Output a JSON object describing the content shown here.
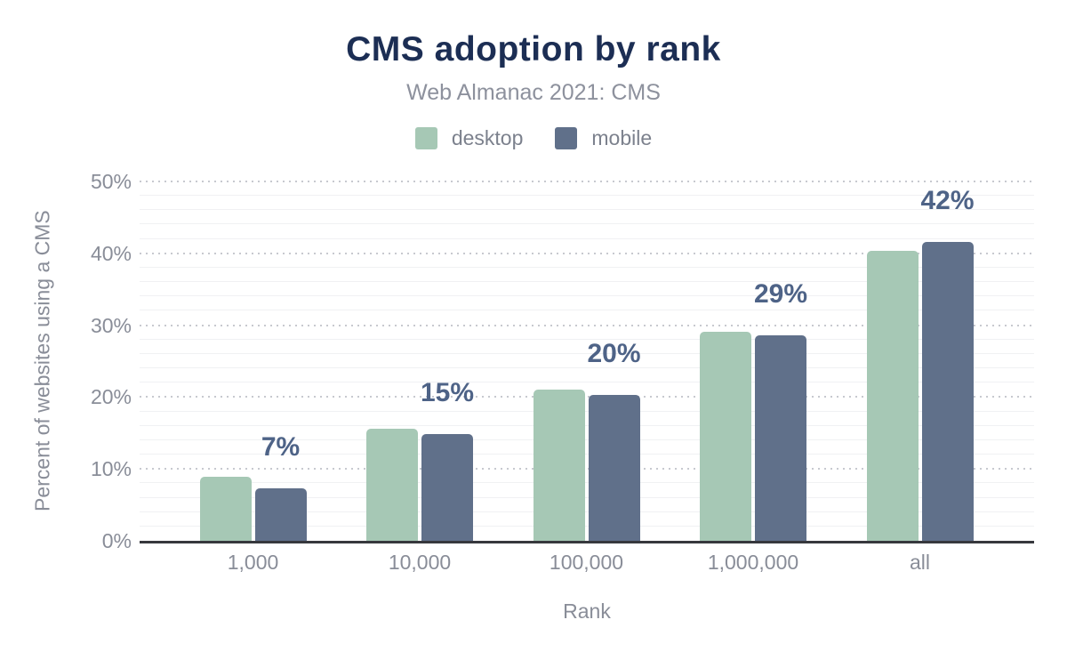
{
  "chart_data": {
    "type": "bar",
    "title": "CMS adoption by rank",
    "subtitle": "Web Almanac 2021: CMS",
    "xlabel": "Rank",
    "ylabel": "Percent of websites using a CMS",
    "categories": [
      "1,000",
      "10,000",
      "100,000",
      "1,000,000",
      "all"
    ],
    "series": [
      {
        "name": "desktop",
        "color": "#a6c8b5",
        "values": [
          8.9,
          15.6,
          21.0,
          29.1,
          40.3
        ]
      },
      {
        "name": "mobile",
        "color": "#60708a",
        "values": [
          7.3,
          14.9,
          20.3,
          28.6,
          41.6
        ]
      }
    ],
    "bar_labels": [
      "7%",
      "15%",
      "20%",
      "29%",
      "42%"
    ],
    "bar_labels_over_series": "mobile",
    "ylim": [
      0,
      50
    ],
    "yticks": [
      "0%",
      "10%",
      "20%",
      "30%",
      "40%",
      "50%"
    ],
    "grid": {
      "minor_step": 2,
      "major_step": 10,
      "major_style": "dotted",
      "minor_style": "solid"
    },
    "legend_position": "top",
    "colors": {
      "title": "#1c2e54",
      "subtitle": "#8d919d",
      "tick_labels": "#898d98",
      "data_labels": "#4e6387",
      "axis_line": "#37383d"
    }
  }
}
